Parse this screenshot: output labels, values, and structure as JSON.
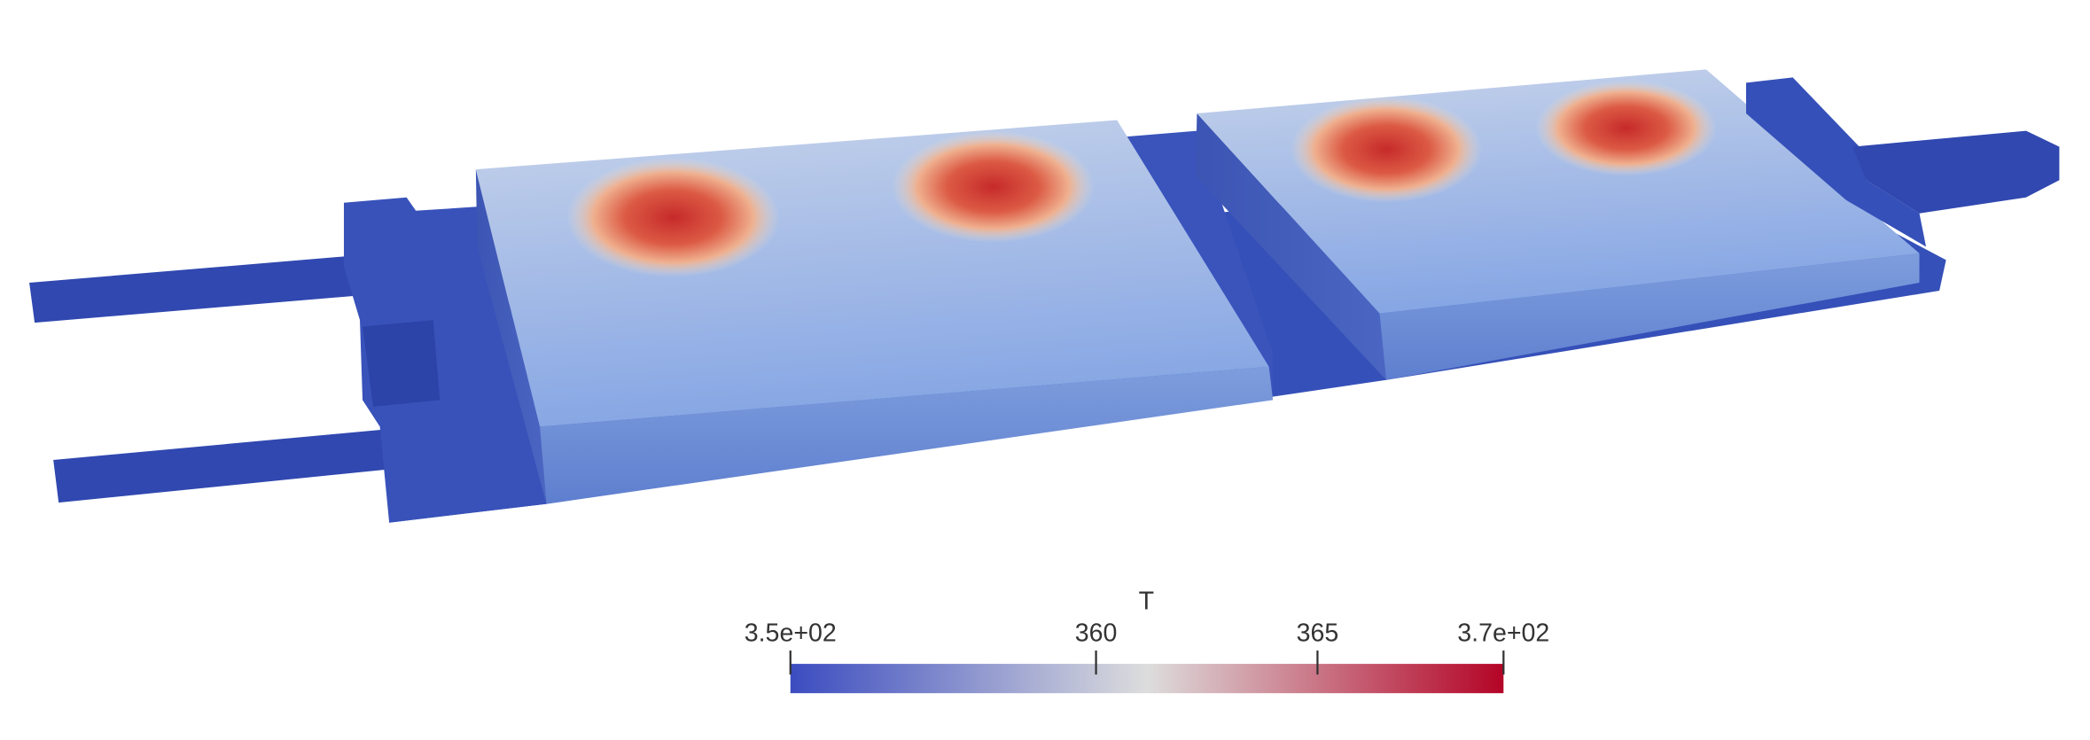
{
  "colorbar": {
    "title": "T",
    "range": [
      353.1,
      369.2
    ],
    "ticks": [
      {
        "value": 353.1,
        "label": "3.5e+02"
      },
      360,
      365,
      {
        "value": 369.2,
        "label": "3.7e+02"
      }
    ],
    "colors": [
      "#3b4cc0",
      "#dddddd",
      "#b40426"
    ]
  }
}
